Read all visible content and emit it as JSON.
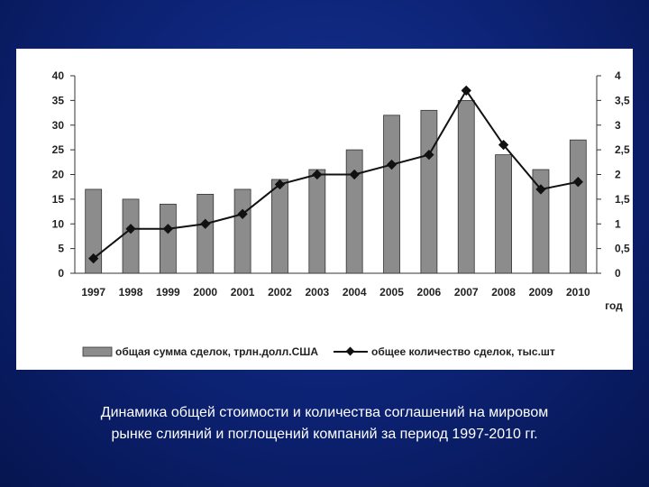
{
  "caption": {
    "line1": "Динамика общей стоимости и количества соглашений на мировом",
    "line2": "рынке слияний и поглощений компаний за период 1997-2010 гг."
  },
  "chart_data": {
    "type": "bar",
    "categories": [
      "1997",
      "1998",
      "1999",
      "2000",
      "2001",
      "2002",
      "2003",
      "2004",
      "2005",
      "2006",
      "2007",
      "2008",
      "2009",
      "2010"
    ],
    "series": [
      {
        "name": "общая сумма сделок, трлн.долл.США",
        "type": "bar",
        "axis": "left",
        "color": "#8c8c8c",
        "values": [
          17,
          15,
          14,
          16,
          17,
          19,
          21,
          25,
          32,
          33,
          35,
          24,
          21,
          27
        ]
      },
      {
        "name": "общее количество сделок, тыс.шт",
        "type": "line",
        "axis": "right",
        "color": "#111111",
        "marker": "diamond",
        "values": [
          0.3,
          0.9,
          0.9,
          1.0,
          1.2,
          1.8,
          2.0,
          2.0,
          2.2,
          2.4,
          3.7,
          2.6,
          1.7,
          1.85
        ]
      }
    ],
    "xlabel": "год",
    "y_left": {
      "min": 0,
      "max": 40,
      "ticks": [
        "0",
        "5",
        "10",
        "15",
        "20",
        "25",
        "30",
        "35",
        "40"
      ]
    },
    "y_right": {
      "min": 0,
      "max": 4,
      "ticks": [
        "0",
        "0,5",
        "1",
        "1,5",
        "2",
        "2,5",
        "3",
        "3,5",
        "4"
      ]
    },
    "grid": false,
    "legend": "bottom"
  }
}
